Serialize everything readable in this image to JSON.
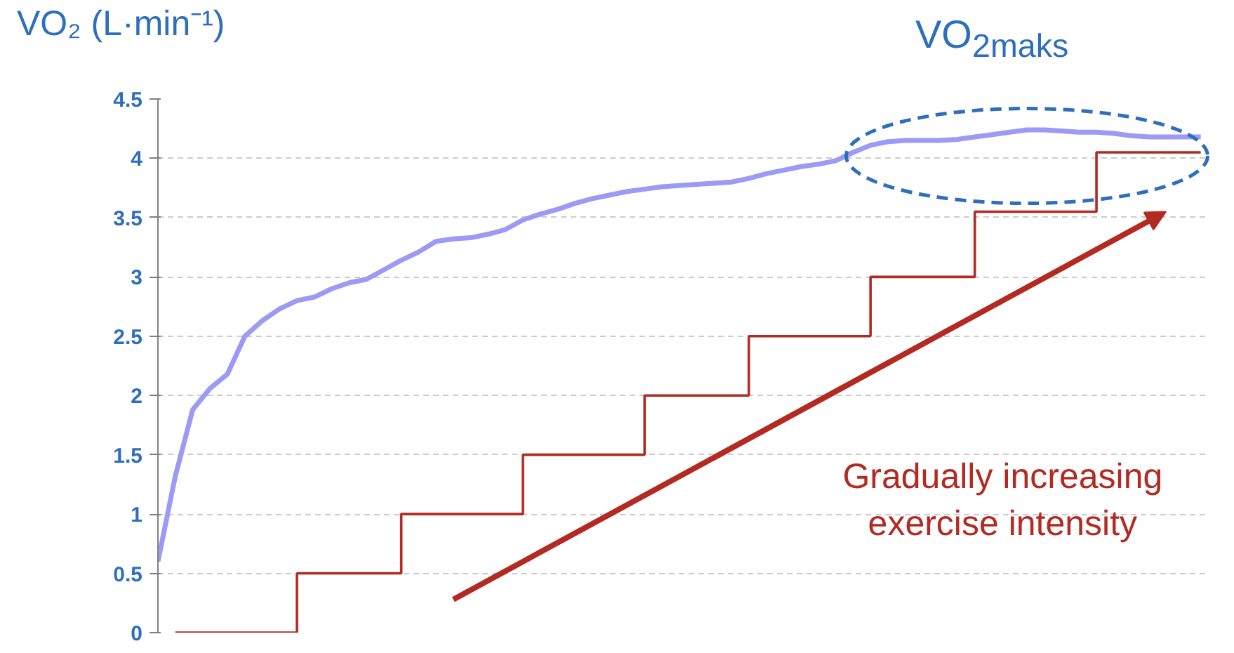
{
  "chart_data": {
    "type": "line",
    "ylabel": "VO₂ (L·min⁻¹)",
    "categories": [
      null,
      null,
      null,
      null,
      null,
      null,
      null,
      null,
      null,
      null,
      null,
      null,
      null,
      null,
      null,
      null,
      null,
      null,
      null,
      null,
      null,
      null,
      null,
      null,
      null,
      null,
      null,
      null,
      null,
      null,
      null,
      null,
      null,
      null,
      null,
      null,
      null,
      null,
      null,
      null,
      null,
      null,
      null,
      null,
      null,
      null,
      null,
      null,
      null,
      null,
      null,
      null,
      null,
      null,
      null,
      null,
      null,
      null,
      null,
      null,
      null
    ],
    "series": [
      {
        "type": "line",
        "color": "#9b9bf5",
        "values": [
          0.6,
          1.32,
          1.88,
          2.06,
          2.18,
          2.5,
          2.63,
          2.73,
          2.8,
          2.83,
          2.9,
          2.95,
          2.98,
          3.06,
          3.14,
          3.21,
          3.3,
          3.32,
          3.33,
          3.36,
          3.4,
          3.48,
          3.53,
          3.57,
          3.62,
          3.66,
          3.69,
          3.72,
          3.74,
          3.76,
          3.77,
          3.78,
          3.79,
          3.8,
          3.83,
          3.87,
          3.9,
          3.93,
          3.95,
          3.98,
          4.05,
          4.11,
          4.14,
          4.15,
          4.15,
          4.15,
          4.16,
          4.18,
          4.2,
          4.22,
          4.24,
          4.24,
          4.23,
          4.22,
          4.22,
          4.21,
          4.19,
          4.18,
          4.18,
          4.18,
          4.18
        ]
      },
      {
        "type": "step",
        "color": "#b22a22",
        "values": [
          null,
          0,
          0,
          0,
          0,
          0,
          0,
          0,
          0.5,
          0.5,
          0.5,
          0.5,
          0.5,
          0.5,
          1.0,
          1.0,
          1.0,
          1.0,
          1.0,
          1.0,
          1.0,
          1.5,
          1.5,
          1.5,
          1.5,
          1.5,
          1.5,
          1.5,
          2.0,
          2.0,
          2.0,
          2.0,
          2.0,
          2.0,
          2.5,
          2.5,
          2.5,
          2.5,
          2.5,
          2.5,
          2.5,
          3.0,
          3.0,
          3.0,
          3.0,
          3.0,
          3.0,
          3.55,
          3.55,
          3.55,
          3.55,
          3.55,
          3.55,
          3.55,
          4.05,
          4.05,
          4.05,
          4.05,
          4.05,
          4.05,
          4.05
        ]
      }
    ],
    "ylim": [
      0,
      4.5
    ],
    "yticks": [
      0,
      0.5,
      1,
      1.5,
      2,
      2.5,
      3,
      3.5,
      4,
      4.5
    ],
    "grid": "y",
    "tick_labels": "y",
    "annotations": [
      "VO$_{2maks}$",
      "Gradually increasing\nexercise intensity"
    ]
  }
}
